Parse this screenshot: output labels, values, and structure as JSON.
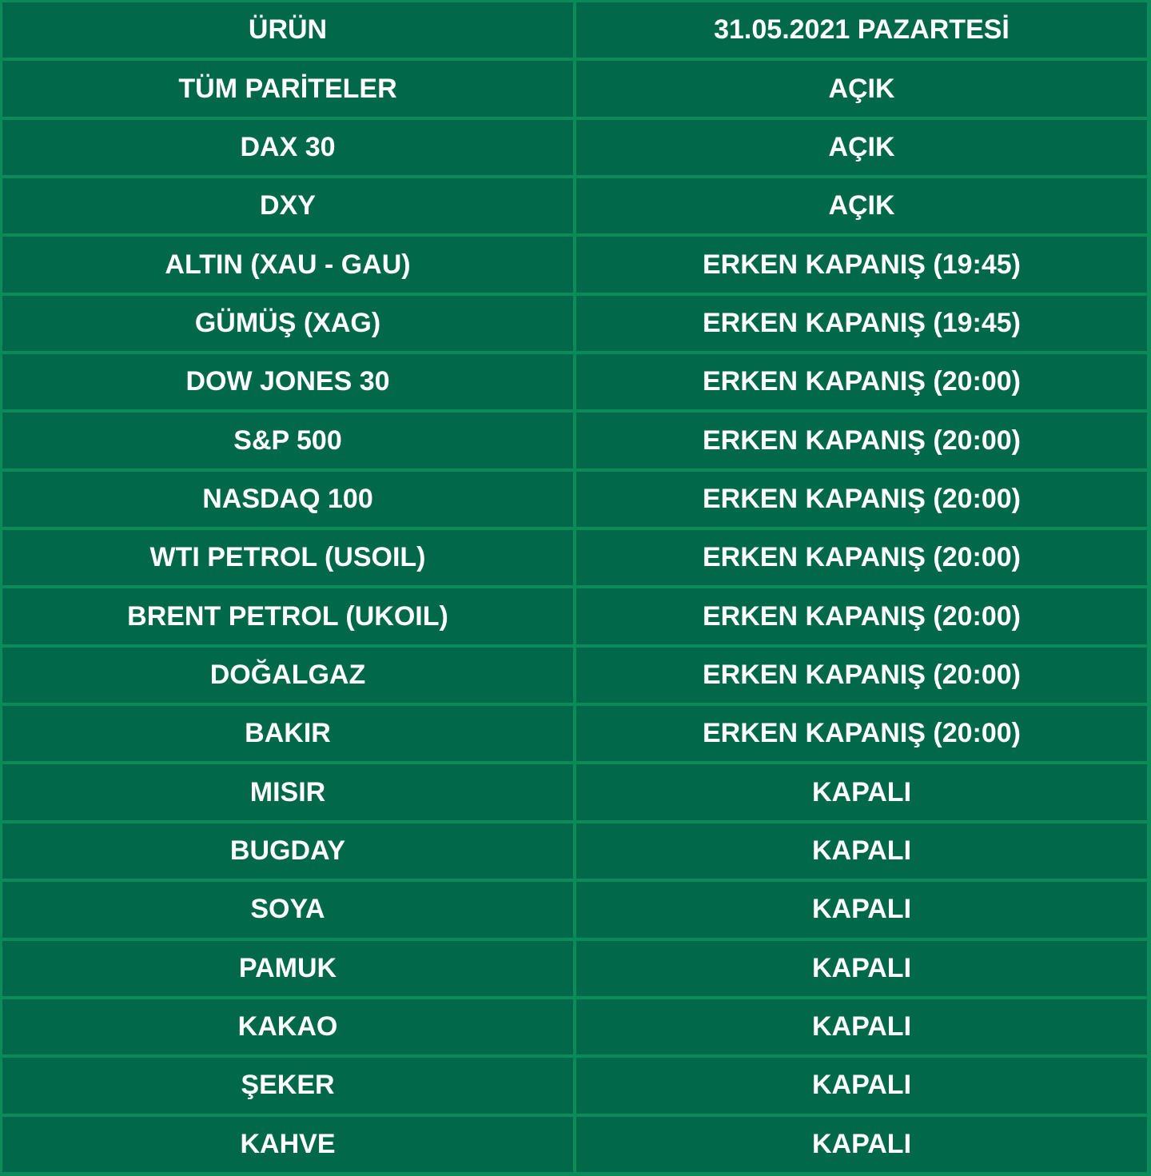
{
  "header": {
    "product": "ÜRÜN",
    "date": "31.05.2021 PAZARTESİ"
  },
  "rows": [
    {
      "product": "TÜM PARİTELER",
      "status": "AÇIK"
    },
    {
      "product": "DAX 30",
      "status": "AÇIK"
    },
    {
      "product": "DXY",
      "status": "AÇIK"
    },
    {
      "product": "ALTIN (XAU - GAU)",
      "status": "ERKEN KAPANIŞ (19:45)"
    },
    {
      "product": "GÜMÜŞ (XAG)",
      "status": "ERKEN KAPANIŞ (19:45)"
    },
    {
      "product": "DOW JONES 30",
      "status": "ERKEN KAPANIŞ (20:00)"
    },
    {
      "product": "S&P 500",
      "status": "ERKEN KAPANIŞ (20:00)"
    },
    {
      "product": "NASDAQ 100",
      "status": "ERKEN KAPANIŞ (20:00)"
    },
    {
      "product": "WTI PETROL (USOIL)",
      "status": "ERKEN KAPANIŞ (20:00)"
    },
    {
      "product": "BRENT PETROL (UKOIL)",
      "status": "ERKEN KAPANIŞ (20:00)"
    },
    {
      "product": "DOĞALGAZ",
      "status": "ERKEN KAPANIŞ (20:00)"
    },
    {
      "product": "BAKIR",
      "status": "ERKEN KAPANIŞ (20:00)"
    },
    {
      "product": "MISIR",
      "status": "KAPALI"
    },
    {
      "product": "BUGDAY",
      "status": "KAPALI"
    },
    {
      "product": "SOYA",
      "status": "KAPALI"
    },
    {
      "product": "PAMUK",
      "status": "KAPALI"
    },
    {
      "product": "KAKAO",
      "status": "KAPALI"
    },
    {
      "product": "ŞEKER",
      "status": "KAPALI"
    },
    {
      "product": "KAHVE",
      "status": "KAPALI"
    }
  ],
  "colors": {
    "cell": "#01684a",
    "border": "#0b8a5a",
    "text": "#ffffff"
  }
}
